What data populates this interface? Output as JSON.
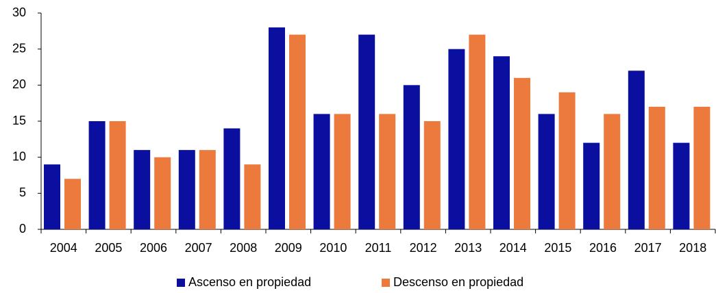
{
  "chart_data": {
    "type": "bar",
    "categories": [
      "2004",
      "2005",
      "2006",
      "2007",
      "2008",
      "2009",
      "2010",
      "2011",
      "2012",
      "2013",
      "2014",
      "2015",
      "2016",
      "2017",
      "2018"
    ],
    "series": [
      {
        "name": "Ascenso en propiedad",
        "color": "#0a0fa0",
        "values": [
          9,
          15,
          11,
          11,
          14,
          28,
          16,
          27,
          20,
          25,
          24,
          16,
          12,
          22,
          12
        ]
      },
      {
        "name": "Descenso en propiedad",
        "color": "#eb7a3c",
        "values": [
          7,
          15,
          10,
          11,
          9,
          27,
          16,
          16,
          15,
          27,
          21,
          19,
          16,
          17,
          17
        ]
      }
    ],
    "ylim": [
      0,
      30
    ],
    "yticks": [
      0,
      5,
      10,
      15,
      20,
      25,
      30
    ],
    "grid": false,
    "legend": "bottom"
  }
}
